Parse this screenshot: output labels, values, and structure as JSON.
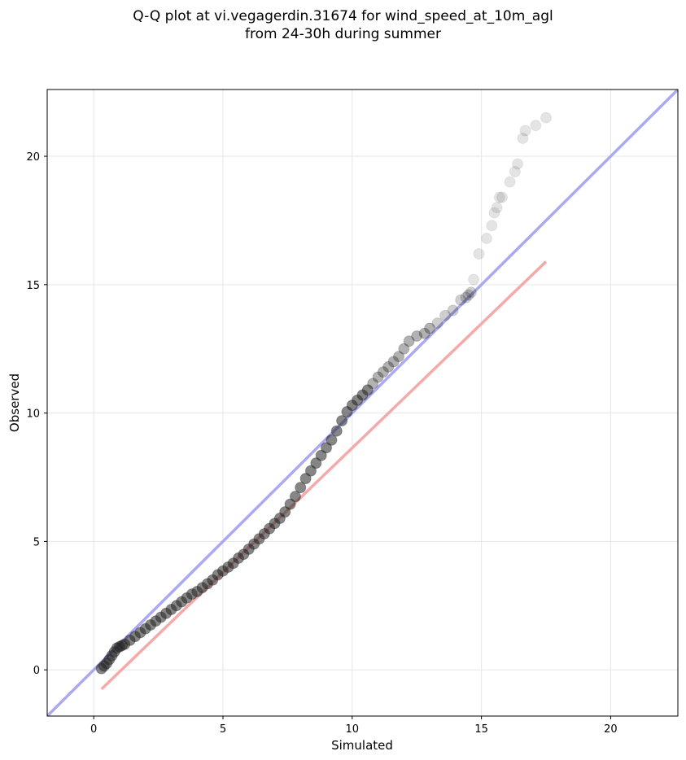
{
  "chart_data": {
    "type": "scatter",
    "title": [
      "Q-Q plot at vi.vegagerdin.31674 for wind_speed_at_10m_agl",
      "from 24-30h during summer"
    ],
    "xlabel": "Simulated",
    "ylabel": "Observed",
    "xlim": [
      -1.8,
      22.6
    ],
    "ylim": [
      -1.8,
      22.6
    ],
    "xticks": [
      0,
      5,
      10,
      15,
      20
    ],
    "yticks": [
      0,
      5,
      10,
      15,
      20
    ],
    "grid": true,
    "points": {
      "x": [
        0.3,
        0.4,
        0.5,
        0.6,
        0.7,
        0.8,
        0.9,
        1.0,
        1.1,
        1.2,
        1.4,
        1.6,
        1.8,
        2.0,
        2.2,
        2.4,
        2.6,
        2.8,
        3.0,
        3.2,
        3.4,
        3.6,
        3.8,
        4.0,
        4.2,
        4.4,
        4.6,
        4.8,
        5.0,
        5.2,
        5.4,
        5.6,
        5.8,
        6.0,
        6.2,
        6.4,
        6.6,
        6.8,
        7.0,
        7.2,
        7.4,
        7.6,
        7.8,
        8.0,
        8.2,
        8.4,
        8.6,
        8.8,
        9.0,
        9.2,
        9.4,
        9.6,
        9.8,
        10.0,
        10.2,
        10.4,
        10.6,
        10.8,
        11.0,
        11.2,
        11.4,
        11.6,
        11.8,
        12.0,
        12.2,
        12.5,
        12.8,
        13.0,
        13.3,
        13.6,
        13.9,
        14.2,
        14.4,
        14.5,
        14.6,
        14.7,
        14.9,
        15.2,
        15.4,
        15.5,
        15.6,
        15.7,
        15.8,
        16.1,
        16.3,
        16.4,
        16.6,
        16.7,
        17.1,
        17.5
      ],
      "y": [
        0.05,
        0.15,
        0.25,
        0.4,
        0.55,
        0.7,
        0.85,
        0.9,
        0.95,
        1.0,
        1.15,
        1.3,
        1.45,
        1.6,
        1.75,
        1.9,
        2.05,
        2.2,
        2.35,
        2.5,
        2.65,
        2.8,
        2.95,
        3.05,
        3.2,
        3.35,
        3.5,
        3.7,
        3.85,
        4.0,
        4.15,
        4.35,
        4.5,
        4.7,
        4.9,
        5.1,
        5.3,
        5.5,
        5.7,
        5.9,
        6.15,
        6.45,
        6.75,
        7.1,
        7.45,
        7.75,
        8.05,
        8.35,
        8.65,
        8.95,
        9.3,
        9.7,
        10.05,
        10.3,
        10.5,
        10.7,
        10.9,
        11.15,
        11.4,
        11.6,
        11.8,
        12.0,
        12.2,
        12.5,
        12.8,
        13.0,
        13.1,
        13.3,
        13.5,
        13.8,
        14.0,
        14.4,
        14.5,
        14.6,
        14.7,
        15.2,
        16.2,
        16.8,
        17.3,
        17.8,
        18.0,
        18.4,
        18.4,
        19.0,
        19.4,
        19.7,
        20.7,
        21.0,
        21.2,
        21.5
      ]
    },
    "reference_lines": [
      {
        "name": "identity",
        "color": "#aaaaf2",
        "x": [
          -1.8,
          22.6
        ],
        "y": [
          -1.8,
          22.6
        ]
      },
      {
        "name": "fit",
        "color": "#f5aaaa",
        "x": [
          0.3,
          17.5
        ],
        "y": [
          -0.75,
          15.9
        ]
      }
    ],
    "marker_color": "#222222"
  }
}
